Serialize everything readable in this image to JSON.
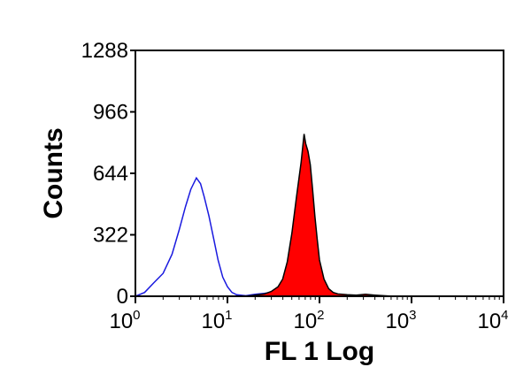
{
  "chart_data": {
    "type": "histogram-overlay",
    "xlabel": "FL 1 Log",
    "ylabel": "Counts",
    "xscale": "log",
    "xlim": [
      1,
      10000
    ],
    "ylim": [
      0,
      1288
    ],
    "grid": false,
    "x_ticks": [
      {
        "base": "10",
        "exp": "0"
      },
      {
        "base": "10",
        "exp": "1"
      },
      {
        "base": "10",
        "exp": "2"
      },
      {
        "base": "10",
        "exp": "3"
      },
      {
        "base": "10",
        "exp": "4"
      }
    ],
    "y_ticks": [
      {
        "value": 0,
        "label": "0"
      },
      {
        "value": 322,
        "label": "322"
      },
      {
        "value": 644,
        "label": "644"
      },
      {
        "value": 966,
        "label": "966"
      },
      {
        "value": 1288,
        "label": "1288"
      }
    ],
    "series": [
      {
        "style": "outline",
        "color": "#1a1adf",
        "points": [
          [
            1.0,
            0
          ],
          [
            1.26,
            20
          ],
          [
            1.58,
            70
          ],
          [
            2.0,
            120
          ],
          [
            2.5,
            220
          ],
          [
            3.0,
            350
          ],
          [
            3.5,
            470
          ],
          [
            4.0,
            560
          ],
          [
            4.6,
            620
          ],
          [
            5.1,
            590
          ],
          [
            5.6,
            520
          ],
          [
            6.3,
            420
          ],
          [
            7.1,
            300
          ],
          [
            7.9,
            190
          ],
          [
            8.9,
            100
          ],
          [
            10.0,
            50
          ],
          [
            11.2,
            20
          ],
          [
            12.6,
            8
          ],
          [
            15.8,
            3
          ],
          [
            20.0,
            10
          ],
          [
            25.1,
            15
          ],
          [
            31.6,
            22
          ],
          [
            39.8,
            28
          ],
          [
            50.1,
            35
          ],
          [
            56.2,
            40
          ],
          [
            63.1,
            30
          ],
          [
            70.8,
            20
          ],
          [
            79.4,
            10
          ],
          [
            89.1,
            3
          ],
          [
            100,
            1
          ],
          [
            112,
            0
          ]
        ]
      },
      {
        "style": "filled",
        "color": "#ff0000",
        "points": [
          [
            15.8,
            0
          ],
          [
            20.0,
            6
          ],
          [
            25.1,
            12
          ],
          [
            29.9,
            25
          ],
          [
            35.5,
            50
          ],
          [
            39.8,
            90
          ],
          [
            44.7,
            180
          ],
          [
            50.1,
            330
          ],
          [
            56.2,
            520
          ],
          [
            63.1,
            700
          ],
          [
            68.0,
            850
          ],
          [
            70.8,
            800
          ],
          [
            75.0,
            760
          ],
          [
            79.4,
            690
          ],
          [
            84.1,
            560
          ],
          [
            89.1,
            420
          ],
          [
            94.4,
            300
          ],
          [
            100,
            190
          ],
          [
            112,
            90
          ],
          [
            126,
            40
          ],
          [
            141,
            20
          ],
          [
            158,
            12
          ],
          [
            200,
            8
          ],
          [
            251,
            6
          ],
          [
            316,
            10
          ],
          [
            398,
            6
          ],
          [
            501,
            3
          ],
          [
            631,
            0
          ]
        ]
      }
    ]
  }
}
